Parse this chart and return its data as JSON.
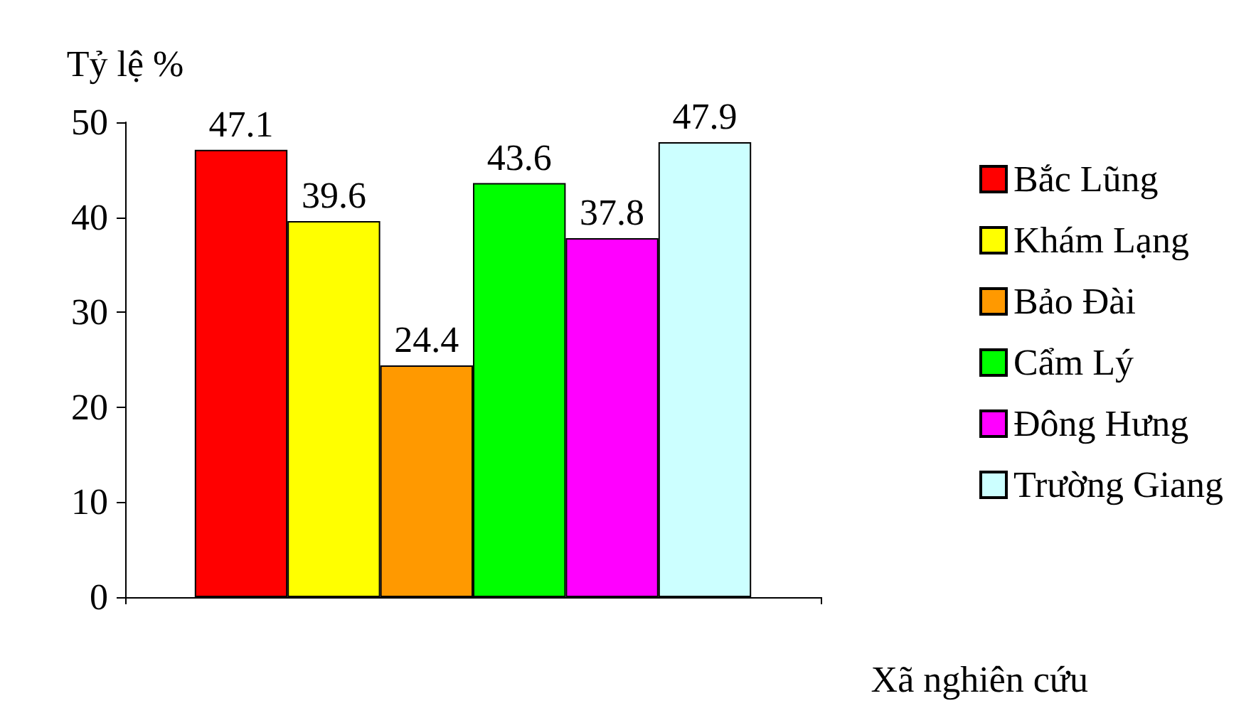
{
  "chart_data": {
    "type": "bar",
    "ylabel": "Tỷ lệ %",
    "xlabel": "Xã nghiên cứu",
    "categories": [
      null
    ],
    "series": [
      {
        "name": "Bắc Lũng",
        "color": "#ff0000",
        "values": [
          47.1
        ]
      },
      {
        "name": "Khám Lạng",
        "color": "#ffff00",
        "values": [
          39.6
        ]
      },
      {
        "name": "Bảo Đài",
        "color": "#ff9900",
        "values": [
          24.4
        ]
      },
      {
        "name": "Cẩm Lý",
        "color": "#00ff00",
        "values": [
          43.6
        ]
      },
      {
        "name": "Đông Hưng",
        "color": "#ff00ff",
        "values": [
          37.8
        ]
      },
      {
        "name": "Trường Giang",
        "color": "#ccffff",
        "values": [
          47.9
        ]
      }
    ],
    "ylim": [
      0,
      50
    ],
    "yticks": [
      0,
      10,
      20,
      30,
      40,
      50
    ],
    "data_labels": true,
    "legend": "right",
    "grid": false
  }
}
